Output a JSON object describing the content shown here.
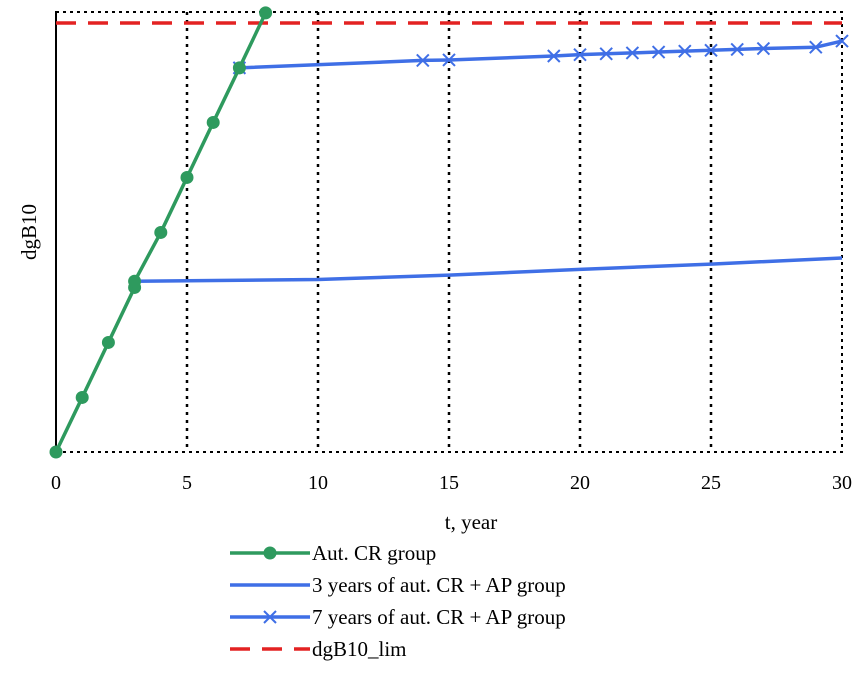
{
  "chart_data": {
    "type": "line",
    "xlabel": "t, year",
    "ylabel": "dgB10",
    "xlim": [
      0,
      30
    ],
    "ylim": [
      0,
      1
    ],
    "x_ticks": [
      0,
      5,
      10,
      15,
      20,
      25,
      30
    ],
    "grid": {
      "vertical_dotted": true,
      "horizontal": false
    },
    "legend_position": "bottom",
    "series": [
      {
        "name": "Aut. CR group",
        "color": "#2e9a5e",
        "marker": "circle",
        "x": [
          0,
          1,
          2,
          3,
          3,
          4,
          5,
          6,
          7,
          8
        ],
        "y": [
          0,
          0.124,
          0.249,
          0.374,
          0.388,
          0.499,
          0.624,
          0.749,
          0.873,
          0.998
        ]
      },
      {
        "name": "3 years of aut. CR + AP group",
        "color": "#3f6fe6",
        "marker": "none",
        "x": [
          3,
          10,
          15,
          20,
          25,
          30
        ],
        "y": [
          0.388,
          0.392,
          0.402,
          0.415,
          0.427,
          0.441
        ]
      },
      {
        "name": "7 years of aut. CR + AP group",
        "color": "#3f6fe6",
        "marker": "x",
        "x": [
          7,
          14,
          15,
          19,
          20,
          21,
          22,
          23,
          24,
          25,
          26,
          27,
          29,
          30
        ],
        "y": [
          0.873,
          0.89,
          0.891,
          0.9,
          0.903,
          0.905,
          0.907,
          0.909,
          0.911,
          0.913,
          0.915,
          0.917,
          0.92,
          0.934
        ]
      },
      {
        "name": "dgB10_lim",
        "color": "#e32222",
        "marker": "none",
        "dash": true,
        "x": [
          0,
          30
        ],
        "y": [
          0.975,
          0.975
        ]
      }
    ]
  }
}
